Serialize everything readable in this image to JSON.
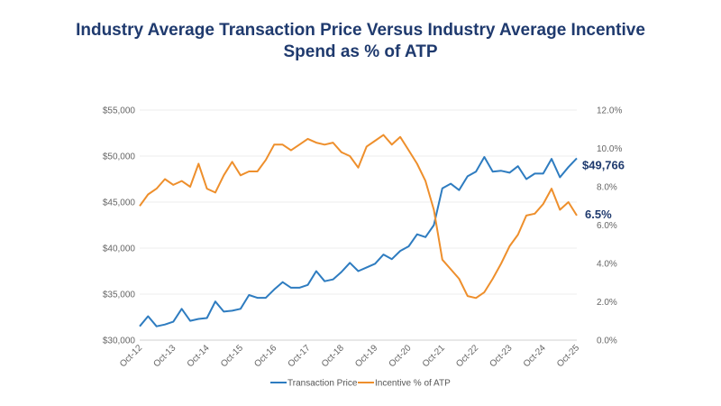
{
  "chart_data": {
    "type": "line",
    "title": "Industry Average Transaction Price Versus Industry Average Incentive Spend as % of ATP",
    "title_lines": [
      "Industry Average Transaction Price Versus Industry Average Incentive",
      "Spend as % of ATP"
    ],
    "x_tick_labels": [
      "Oct-12",
      "Oct-13",
      "Oct-14",
      "Oct-15",
      "Oct-16",
      "Oct-17",
      "Oct-18",
      "Oct-19",
      "Oct-20",
      "Oct-21",
      "Oct-22",
      "Oct-23",
      "Oct-24",
      "Oct-25"
    ],
    "x_frequency": "quarterly",
    "y_left": {
      "range": [
        30000,
        55000
      ],
      "tick_labels": [
        "$30,000",
        "$35,000",
        "$40,000",
        "$45,000",
        "$50,000",
        "$55,000"
      ],
      "ticks": [
        30000,
        35000,
        40000,
        45000,
        50000,
        55000
      ]
    },
    "y_right": {
      "range": [
        0,
        12
      ],
      "tick_labels": [
        "0.0%",
        "2.0%",
        "4.0%",
        "6.0%",
        "8.0%",
        "10.0%",
        "12.0%"
      ],
      "ticks": [
        0,
        2,
        4,
        6,
        8,
        10,
        12
      ]
    },
    "grid": true,
    "legend_position": "bottom",
    "series": [
      {
        "name": "Transaction Price",
        "axis": "left",
        "color": "#2e7cc0",
        "values": [
          31500,
          32600,
          31500,
          31700,
          32000,
          33400,
          32100,
          32300,
          32400,
          34200,
          33100,
          33200,
          33400,
          34900,
          34600,
          34600,
          35500,
          36300,
          35700,
          35700,
          36000,
          37500,
          36400,
          36600,
          37400,
          38400,
          37500,
          37900,
          38300,
          39300,
          38800,
          39700,
          40200,
          41500,
          41200,
          42500,
          46500,
          47000,
          46300,
          47800,
          48300,
          49900,
          48300,
          48400,
          48200,
          48900,
          47500,
          48100,
          48100,
          49700,
          47700,
          48800,
          49766
        ],
        "end_label": "$49,766"
      },
      {
        "name": "Incentive % of ATP",
        "axis": "right",
        "color": "#ee8f2c",
        "values": [
          7.0,
          7.6,
          7.9,
          8.4,
          8.1,
          8.3,
          8.0,
          9.2,
          7.9,
          7.7,
          8.6,
          9.3,
          8.6,
          8.8,
          8.8,
          9.4,
          10.2,
          10.2,
          9.9,
          10.2,
          10.5,
          10.3,
          10.2,
          10.3,
          9.8,
          9.6,
          9.0,
          10.1,
          10.4,
          10.7,
          10.2,
          10.6,
          9.9,
          9.2,
          8.3,
          6.8,
          4.2,
          3.7,
          3.2,
          2.3,
          2.2,
          2.5,
          3.2,
          4.0,
          4.9,
          5.5,
          6.5,
          6.6,
          7.1,
          7.9,
          6.8,
          7.2,
          6.5
        ],
        "end_label": "6.5%"
      }
    ]
  }
}
